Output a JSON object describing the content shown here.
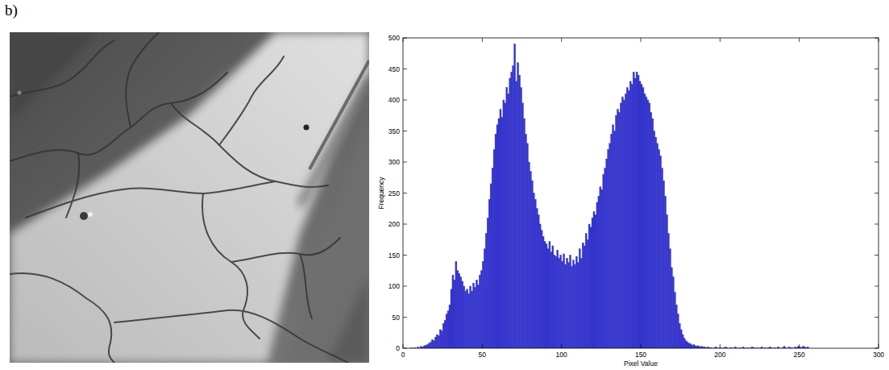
{
  "panel_label": "b)",
  "chart_data": {
    "type": "histogram",
    "x_label": "Pixel Value",
    "y_label": "Frequency",
    "color": "#3333cc",
    "xlim": [
      0,
      300
    ],
    "xticks": [
      0,
      50,
      100,
      150,
      200,
      250,
      300
    ],
    "ylim": [
      0,
      500
    ],
    "yticks": [
      0,
      50,
      100,
      150,
      200,
      250,
      300,
      350,
      400,
      450,
      500
    ],
    "bins": [
      0,
      1,
      2,
      3,
      4,
      5,
      6,
      7,
      8,
      9,
      10,
      11,
      12,
      13,
      14,
      15,
      16,
      17,
      18,
      19,
      20,
      21,
      22,
      23,
      24,
      25,
      26,
      27,
      28,
      29,
      30,
      31,
      32,
      33,
      34,
      35,
      36,
      37,
      38,
      39,
      40,
      41,
      42,
      43,
      44,
      45,
      46,
      47,
      48,
      49,
      50,
      51,
      52,
      53,
      54,
      55,
      56,
      57,
      58,
      59,
      60,
      61,
      62,
      63,
      64,
      65,
      66,
      67,
      68,
      69,
      70,
      71,
      72,
      73,
      74,
      75,
      76,
      77,
      78,
      79,
      80,
      81,
      82,
      83,
      84,
      85,
      86,
      87,
      88,
      89,
      90,
      91,
      92,
      93,
      94,
      95,
      96,
      97,
      98,
      99,
      100,
      101,
      102,
      103,
      104,
      105,
      106,
      107,
      108,
      109,
      110,
      111,
      112,
      113,
      114,
      115,
      116,
      117,
      118,
      119,
      120,
      121,
      122,
      123,
      124,
      125,
      126,
      127,
      128,
      129,
      130,
      131,
      132,
      133,
      134,
      135,
      136,
      137,
      138,
      139,
      140,
      141,
      142,
      143,
      144,
      145,
      146,
      147,
      148,
      149,
      150,
      151,
      152,
      153,
      154,
      155,
      156,
      157,
      158,
      159,
      160,
      161,
      162,
      163,
      164,
      165,
      166,
      167,
      168,
      169,
      170,
      171,
      172,
      173,
      174,
      175,
      176,
      177,
      178,
      179,
      180,
      181,
      182,
      183,
      184,
      185,
      186,
      187,
      188,
      189,
      190,
      191,
      192,
      193,
      194,
      195,
      196,
      197,
      198,
      199,
      200,
      201,
      202,
      203,
      204,
      205,
      206,
      207,
      208,
      209,
      210,
      211,
      212,
      213,
      214,
      215,
      216,
      217,
      218,
      219,
      220,
      221,
      222,
      223,
      224,
      225,
      226,
      227,
      228,
      229,
      230,
      231,
      232,
      233,
      234,
      235,
      236,
      237,
      238,
      239,
      240,
      241,
      242,
      243,
      244,
      245,
      246,
      247,
      248,
      249,
      250,
      251,
      252,
      253,
      254,
      255,
      256
    ],
    "counts": [
      0,
      0,
      0,
      0,
      0,
      1,
      0,
      1,
      0,
      2,
      1,
      3,
      2,
      4,
      5,
      6,
      8,
      10,
      14,
      12,
      18,
      22,
      20,
      30,
      28,
      40,
      45,
      55,
      60,
      70,
      95,
      118,
      110,
      140,
      125,
      120,
      115,
      108,
      100,
      92,
      95,
      88,
      100,
      92,
      105,
      98,
      110,
      102,
      118,
      125,
      140,
      160,
      185,
      210,
      240,
      265,
      290,
      320,
      345,
      360,
      370,
      385,
      372,
      400,
      395,
      420,
      410,
      435,
      445,
      455,
      490,
      430,
      460,
      440,
      420,
      395,
      370,
      345,
      330,
      300,
      285,
      270,
      250,
      240,
      225,
      215,
      200,
      190,
      180,
      172,
      168,
      160,
      172,
      155,
      165,
      150,
      148,
      158,
      145,
      150,
      140,
      152,
      135,
      145,
      138,
      150,
      132,
      142,
      135,
      148,
      138,
      160,
      145,
      170,
      165,
      185,
      175,
      200,
      195,
      210,
      220,
      215,
      235,
      245,
      260,
      255,
      280,
      290,
      305,
      320,
      330,
      345,
      360,
      350,
      375,
      385,
      380,
      395,
      405,
      400,
      410,
      420,
      415,
      430,
      425,
      445,
      435,
      445,
      440,
      430,
      425,
      420,
      410,
      405,
      400,
      395,
      380,
      370,
      350,
      340,
      330,
      320,
      310,
      290,
      270,
      245,
      215,
      185,
      160,
      130,
      115,
      90,
      70,
      55,
      40,
      30,
      22,
      16,
      12,
      10,
      8,
      7,
      5,
      6,
      4,
      3,
      4,
      2,
      3,
      2,
      2,
      1,
      2,
      1,
      1,
      0,
      1,
      2,
      0,
      1,
      1,
      0,
      1,
      2,
      1,
      0,
      1,
      1,
      0,
      2,
      1,
      0,
      1,
      0,
      2,
      1,
      0,
      1,
      0,
      1,
      2,
      1,
      0,
      1,
      0,
      1,
      2,
      0,
      1,
      0,
      1,
      2,
      1,
      0,
      1,
      0,
      2,
      1,
      0,
      1,
      3,
      1,
      0,
      2,
      1,
      1,
      0,
      2,
      1,
      3,
      2,
      1,
      3,
      2,
      1,
      2
    ]
  }
}
